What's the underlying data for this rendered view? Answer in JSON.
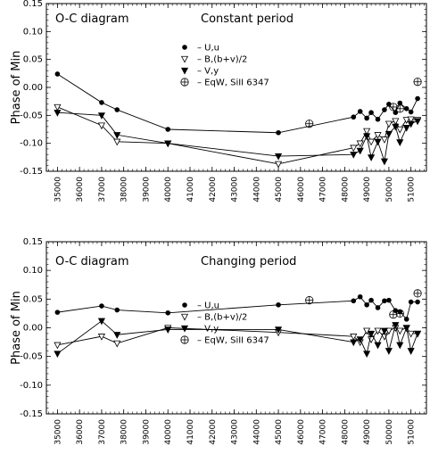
{
  "chart_data": [
    {
      "type": "line",
      "title": "O-C diagram",
      "subtitle": "Constant period",
      "ylabel": "Phase of Min",
      "xlabel": "",
      "xlim": [
        34500,
        51700
      ],
      "ylim": [
        -0.15,
        0.15
      ],
      "xticks": [
        35000,
        36000,
        37000,
        38000,
        39000,
        40000,
        41000,
        42000,
        43000,
        44000,
        45000,
        46000,
        47000,
        48000,
        49000,
        50000,
        51000
      ],
      "yticks": [
        "0.15",
        "0.10",
        "0.05",
        "0.00",
        "-0.05",
        "-0.10",
        "-0.15"
      ],
      "legend_position": "upper-center",
      "series": [
        {
          "name": "U,u",
          "marker": "filled-circle",
          "x": [
            35000,
            37000,
            37700,
            40000,
            45000,
            48400,
            48700,
            49000,
            49200,
            49500,
            49800,
            50000,
            50300,
            50500,
            50800,
            51000,
            51300
          ],
          "y": [
            0.024,
            -0.027,
            -0.04,
            -0.075,
            -0.081,
            -0.053,
            -0.043,
            -0.055,
            -0.045,
            -0.057,
            -0.04,
            -0.03,
            -0.045,
            -0.028,
            -0.038,
            -0.044,
            -0.02
          ]
        },
        {
          "name": "B,(b+v)/2",
          "marker": "open-triangle-down",
          "x": [
            35000,
            37000,
            37700,
            40000,
            45000,
            48400,
            48700,
            49000,
            49200,
            49500,
            49800,
            50000,
            50300,
            50500,
            50800,
            51000,
            51300
          ],
          "y": [
            -0.035,
            -0.068,
            -0.097,
            -0.1,
            -0.137,
            -0.108,
            -0.1,
            -0.078,
            -0.097,
            -0.085,
            -0.093,
            -0.065,
            -0.06,
            -0.075,
            -0.058,
            -0.057,
            -0.058
          ]
        },
        {
          "name": "V,y",
          "marker": "filled-triangle-down",
          "x": [
            35000,
            37000,
            37700,
            40000,
            45000,
            48400,
            48700,
            49000,
            49200,
            49500,
            49800,
            50000,
            50300,
            50500,
            50800,
            51000,
            51300
          ],
          "y": [
            -0.045,
            -0.05,
            -0.085,
            -0.1,
            -0.123,
            -0.12,
            -0.113,
            -0.087,
            -0.125,
            -0.097,
            -0.132,
            -0.083,
            -0.07,
            -0.098,
            -0.072,
            -0.065,
            -0.06
          ]
        },
        {
          "name": "EqW, SiII 6347",
          "marker": "circle-plus",
          "x": [
            46400,
            50200,
            50500,
            51300
          ],
          "y": [
            -0.065,
            -0.035,
            -0.038,
            0.01
          ]
        }
      ]
    },
    {
      "type": "line",
      "title": "O-C diagram",
      "subtitle": "Changing period",
      "ylabel": "Phase of Min",
      "xlabel": "",
      "xlim": [
        34500,
        51700
      ],
      "ylim": [
        -0.15,
        0.15
      ],
      "xticks": [
        35000,
        36000,
        37000,
        38000,
        39000,
        40000,
        41000,
        42000,
        43000,
        44000,
        45000,
        46000,
        47000,
        48000,
        49000,
        50000,
        51000
      ],
      "yticks": [
        "0.15",
        "0.10",
        "0.05",
        "0.00",
        "-0.05",
        "-0.10",
        "-0.15"
      ],
      "legend_position": "lower-center",
      "series": [
        {
          "name": "U,u",
          "marker": "filled-circle",
          "x": [
            35000,
            37000,
            37700,
            40000,
            45000,
            48400,
            48700,
            49000,
            49200,
            49500,
            49800,
            50000,
            50300,
            50500,
            50800,
            51000,
            51300
          ],
          "y": [
            0.027,
            0.038,
            0.031,
            0.026,
            0.04,
            0.047,
            0.054,
            0.04,
            0.048,
            0.035,
            0.047,
            0.048,
            0.03,
            0.028,
            0.015,
            0.045,
            0.045
          ]
        },
        {
          "name": "B,(b+v)/2",
          "marker": "open-triangle-down",
          "x": [
            35000,
            37000,
            37700,
            40000,
            45000,
            48400,
            48700,
            49000,
            49200,
            49500,
            49800,
            50000,
            50300,
            50500,
            50800,
            51000,
            51300
          ],
          "y": [
            -0.03,
            -0.015,
            -0.027,
            0.0,
            -0.008,
            -0.015,
            -0.025,
            -0.005,
            -0.02,
            -0.005,
            -0.015,
            -0.005,
            0.0,
            -0.005,
            0.0,
            -0.01,
            -0.01
          ]
        },
        {
          "name": "V,y",
          "marker": "filled-triangle-down",
          "x": [
            35000,
            37000,
            37700,
            40000,
            45000,
            48400,
            48700,
            49000,
            49200,
            49500,
            49800,
            50000,
            50300,
            50500,
            50800,
            51000,
            51300
          ],
          "y": [
            -0.045,
            0.012,
            -0.012,
            -0.003,
            -0.003,
            -0.025,
            -0.02,
            -0.045,
            -0.01,
            -0.03,
            -0.005,
            -0.04,
            0.005,
            -0.03,
            0.0,
            -0.04,
            -0.01
          ]
        },
        {
          "name": "EqW, SiII 6347",
          "marker": "circle-plus",
          "x": [
            46400,
            50200,
            50500,
            51300
          ],
          "y": [
            0.048,
            0.023,
            0.025,
            0.06
          ]
        }
      ]
    }
  ]
}
